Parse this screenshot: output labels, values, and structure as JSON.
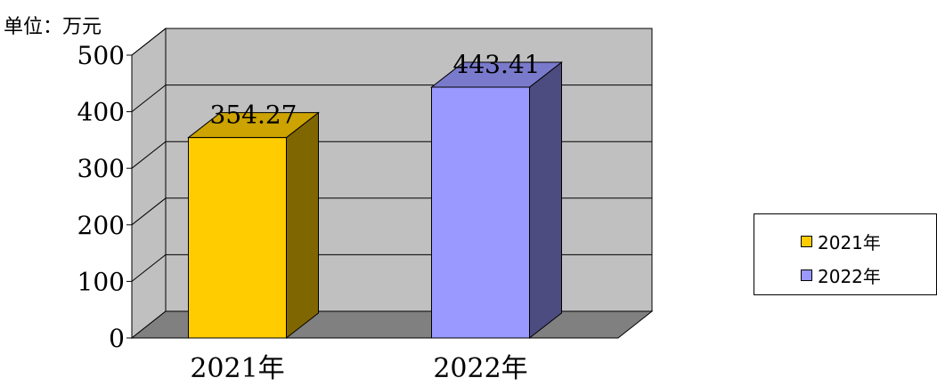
{
  "chart_data": {
    "type": "bar",
    "unit_label": "单位：万元",
    "categories": [
      "2021年",
      "2022年"
    ],
    "values": [
      354.27,
      443.41
    ],
    "value_labels": [
      "354.27",
      "443.41"
    ],
    "ylim": [
      0,
      500
    ],
    "yticks": [
      "0",
      "100",
      "200",
      "300",
      "400",
      "500"
    ],
    "grid": true,
    "legend_position": "right",
    "legend": [
      "2021年",
      "2022年"
    ],
    "colors": {
      "bar_front": [
        "#FFCC00",
        "#9999FF"
      ],
      "bar_side": [
        "#806600",
        "#4C4C80"
      ],
      "bar_top": [
        "#CCA300",
        "#7A7ACC"
      ],
      "back_wall": "#C0C0C0",
      "floor": "#808080"
    }
  }
}
